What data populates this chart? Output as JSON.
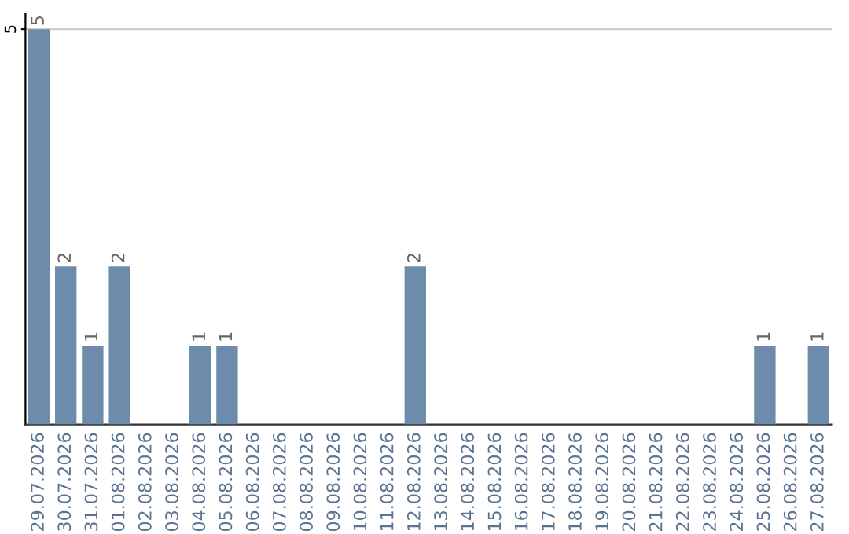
{
  "chart_data": {
    "type": "bar",
    "categories": [
      "29.07.2026",
      "30.07.2026",
      "31.07.2026",
      "01.08.2026",
      "02.08.2026",
      "03.08.2026",
      "04.08.2026",
      "05.08.2026",
      "06.08.2026",
      "07.08.2026",
      "08.08.2026",
      "09.08.2026",
      "10.08.2026",
      "11.08.2026",
      "12.08.2026",
      "13.08.2026",
      "14.08.2026",
      "15.08.2026",
      "16.08.2026",
      "17.08.2026",
      "18.08.2026",
      "19.08.2026",
      "20.08.2026",
      "21.08.2026",
      "22.08.2026",
      "23.08.2026",
      "24.08.2026",
      "25.08.2026",
      "26.08.2026",
      "27.08.2026"
    ],
    "values": [
      5,
      2,
      1,
      2,
      0,
      0,
      1,
      1,
      0,
      0,
      0,
      0,
      0,
      0,
      2,
      0,
      0,
      0,
      0,
      0,
      0,
      0,
      0,
      0,
      0,
      0,
      0,
      1,
      0,
      1
    ],
    "value_labels": [
      "5",
      "2",
      "1",
      "2",
      null,
      null,
      "1",
      "1",
      null,
      null,
      null,
      null,
      null,
      null,
      "2",
      null,
      null,
      null,
      null,
      null,
      null,
      null,
      null,
      null,
      null,
      null,
      null,
      "1",
      null,
      "1"
    ],
    "color": "#6d8cab",
    "ylim": [
      0,
      5.2
    ],
    "yticks": [
      5
    ],
    "grid": "y"
  }
}
